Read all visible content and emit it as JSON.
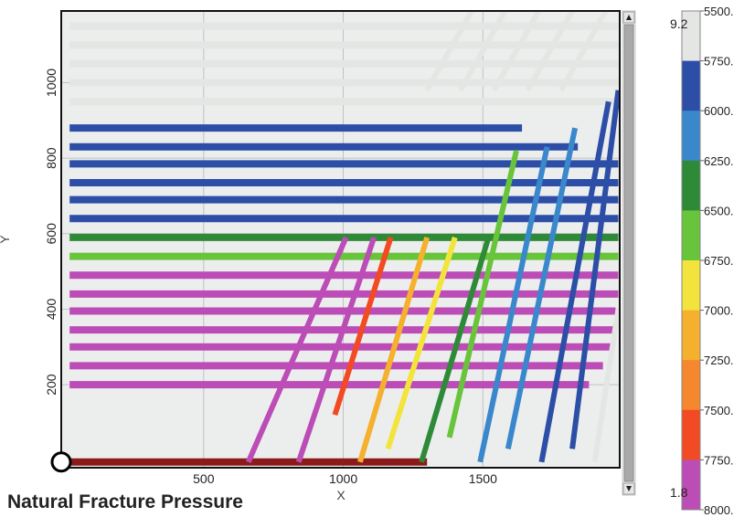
{
  "caption": "Natural Fracture Pressure",
  "chart_data": {
    "type": "line",
    "title": "",
    "xlabel": "X",
    "ylabel": "Y",
    "xlim": [
      -10,
      1990
    ],
    "ylim": [
      -20,
      1190
    ],
    "x_ticks": [
      500,
      1000,
      1500
    ],
    "y_ticks": [
      200,
      400,
      600,
      800,
      1000
    ],
    "grid": true,
    "colorbar": {
      "position": "right",
      "top_label": "9.2",
      "bottom_label": "1.8",
      "tick_labels": [
        "5500.",
        "5750.",
        "6000.",
        "6250.",
        "6500.",
        "6750.",
        "7000.",
        "7250.",
        "7500.",
        "7750.",
        "8000."
      ],
      "colors": [
        "#e4e6e4",
        "#2d4ea6",
        "#3a87cc",
        "#2f8a38",
        "#68c43a",
        "#f2e43c",
        "#f5b02e",
        "#f5872e",
        "#f24a22",
        "#bc4cb6"
      ]
    },
    "horizontal_fractures": [
      {
        "y": 1150,
        "x0": 20,
        "x1": 1985,
        "color": "#e4e6e4"
      },
      {
        "y": 1100,
        "x0": 20,
        "x1": 1985,
        "color": "#e4e6e4"
      },
      {
        "y": 1050,
        "x0": 20,
        "x1": 1985,
        "color": "#e4e6e4"
      },
      {
        "y": 1000,
        "x0": 20,
        "x1": 1985,
        "color": "#e4e6e4"
      },
      {
        "y": 950,
        "x0": 20,
        "x1": 1985,
        "color": "#e4e6e4"
      },
      {
        "y": 880,
        "x0": 20,
        "x1": 1640,
        "color": "#2d4ea6"
      },
      {
        "y": 830,
        "x0": 20,
        "x1": 1840,
        "color": "#2d4ea6"
      },
      {
        "y": 785,
        "x0": 20,
        "x1": 1985,
        "color": "#2d4ea6"
      },
      {
        "y": 735,
        "x0": 20,
        "x1": 1985,
        "color": "#2d4ea6"
      },
      {
        "y": 690,
        "x0": 20,
        "x1": 1985,
        "color": "#2d4ea6"
      },
      {
        "y": 640,
        "x0": 20,
        "x1": 1985,
        "color": "#2d4ea6"
      },
      {
        "y": 590,
        "x0": 20,
        "x1": 1985,
        "color": "#2f8a38"
      },
      {
        "y": 540,
        "x0": 20,
        "x1": 1985,
        "color": "#68c43a"
      },
      {
        "y": 490,
        "x0": 20,
        "x1": 1985,
        "color": "#bc4cb6"
      },
      {
        "y": 440,
        "x0": 20,
        "x1": 1985,
        "color": "#bc4cb6"
      },
      {
        "y": 395,
        "x0": 20,
        "x1": 1975,
        "color": "#bc4cb6"
      },
      {
        "y": 345,
        "x0": 20,
        "x1": 1975,
        "color": "#bc4cb6"
      },
      {
        "y": 300,
        "x0": 20,
        "x1": 1960,
        "color": "#bc4cb6"
      },
      {
        "y": 250,
        "x0": 20,
        "x1": 1930,
        "color": "#bc4cb6"
      },
      {
        "y": 200,
        "x0": 20,
        "x1": 1880,
        "color": "#bc4cb6"
      },
      {
        "y": -5,
        "x0": 20,
        "x1": 1300,
        "color": "#8b1a1a"
      }
    ],
    "oblique_fractures": [
      {
        "x0": 660,
        "x1": 1010,
        "y0": -5,
        "y1": 590,
        "color": "#bc4cb6"
      },
      {
        "x0": 840,
        "x1": 1110,
        "y0": -5,
        "y1": 590,
        "color": "#bc4cb6"
      },
      {
        "x0": 970,
        "x1": 1170,
        "y0": 120,
        "y1": 590,
        "color": "#f24a22"
      },
      {
        "x0": 1060,
        "x1": 1300,
        "y0": -5,
        "y1": 590,
        "color": "#f5b02e"
      },
      {
        "x0": 1160,
        "x1": 1400,
        "y0": 30,
        "y1": 590,
        "color": "#f2e43c"
      },
      {
        "x0": 1280,
        "x1": 1520,
        "y0": -5,
        "y1": 590,
        "color": "#2f8a38"
      },
      {
        "x0": 1380,
        "x1": 1620,
        "y0": 60,
        "y1": 820,
        "color": "#68c43a"
      },
      {
        "x0": 1490,
        "x1": 1730,
        "y0": -5,
        "y1": 830,
        "color": "#3a87cc"
      },
      {
        "x0": 1590,
        "x1": 1830,
        "y0": 30,
        "y1": 880,
        "color": "#3a87cc"
      },
      {
        "x0": 1710,
        "x1": 1950,
        "y0": -5,
        "y1": 950,
        "color": "#2d4ea6"
      },
      {
        "x0": 1820,
        "x1": 1985,
        "y0": 30,
        "y1": 980,
        "color": "#2d4ea6"
      },
      {
        "x0": 1900,
        "x1": 1985,
        "y0": -5,
        "y1": 400,
        "color": "#e4e6e4"
      },
      {
        "x0": 1300,
        "x1": 1460,
        "y0": 980,
        "y1": 1190,
        "color": "#e4e6e4"
      },
      {
        "x0": 1420,
        "x1": 1580,
        "y0": 980,
        "y1": 1190,
        "color": "#e4e6e4"
      },
      {
        "x0": 1540,
        "x1": 1700,
        "y0": 980,
        "y1": 1190,
        "color": "#e4e6e4"
      },
      {
        "x0": 1660,
        "x1": 1820,
        "y0": 980,
        "y1": 1190,
        "color": "#e4e6e4"
      },
      {
        "x0": 1780,
        "x1": 1940,
        "y0": 980,
        "y1": 1190,
        "color": "#e4e6e4"
      }
    ],
    "well_marker": {
      "x": -10,
      "y": -5
    }
  }
}
